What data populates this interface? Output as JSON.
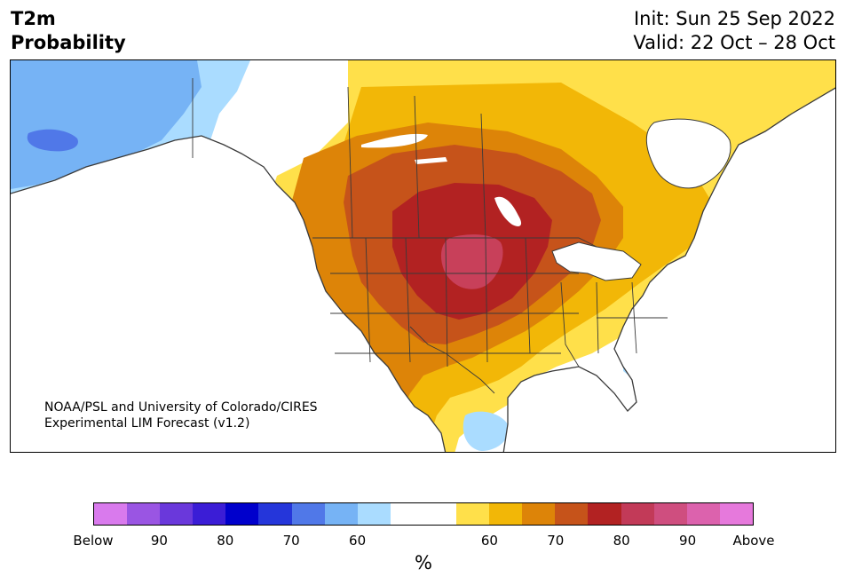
{
  "title": {
    "left_line1": "T2m",
    "left_line2": "Probability",
    "right_line1": "Init: Sun 25 Sep 2022",
    "right_line2": "Valid: 22 Oct – 28 Oct"
  },
  "credit": {
    "line1": "NOAA/PSL and University of Colorado/CIRES",
    "line2": "Experimental LIM Forecast (v1.2)"
  },
  "map": {
    "region": "North America",
    "colors": {
      "land": "#ffffff",
      "outline": "#3a3a3a",
      "below_60": "#aadcff",
      "below_70": "#76b3f5",
      "below_80": "#5078e8",
      "above_50": "#ffe04a",
      "above_60": "#f2b707",
      "above_70": "#dd8408",
      "above_75": "#c6531a",
      "above_80": "#b22222",
      "above_85": "#c8405a"
    }
  },
  "colorbar": {
    "unit": "%",
    "colors": [
      "#d97aed",
      "#9a55e3",
      "#6a38db",
      "#3b1dd6",
      "#0000cc",
      "#2536da",
      "#5078e8",
      "#76b3f5",
      "#aadcff",
      "#ffffff",
      "#ffffff",
      "#ffe04a",
      "#f2b707",
      "#dd8408",
      "#c6531a",
      "#b22222",
      "#c23a58",
      "#cf4e7f",
      "#dc62ad",
      "#e679dc"
    ],
    "tick_labels": [
      "Below",
      "90",
      "80",
      "70",
      "60",
      "60",
      "70",
      "80",
      "90",
      "Above"
    ],
    "tick_indices": [
      0,
      2,
      4,
      6,
      8,
      12,
      14,
      16,
      18,
      20
    ]
  }
}
